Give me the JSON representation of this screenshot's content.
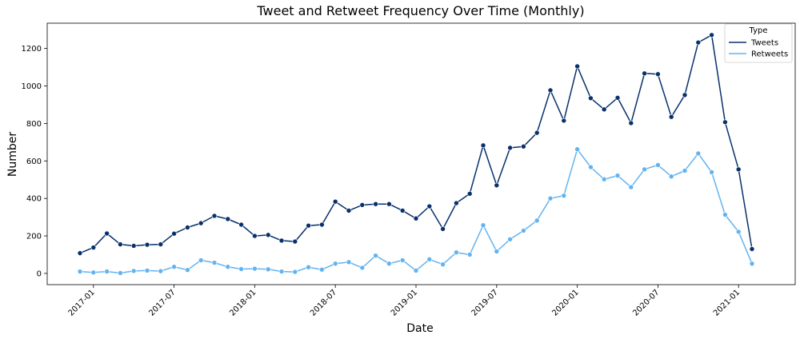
{
  "chart_data": {
    "type": "line",
    "title": "Tweet and Retweet Frequency Over Time (Monthly)",
    "xlabel": "Date",
    "ylabel": "Number",
    "x_start": "2016-12",
    "x_ticks": [
      "2017-01",
      "2017-07",
      "2018-01",
      "2018-07",
      "2019-01",
      "2019-07",
      "2020-01",
      "2020-07",
      "2021-01"
    ],
    "y_ticks": [
      0,
      200,
      400,
      600,
      800,
      1000,
      1200
    ],
    "ylim": [
      -60,
      1335
    ],
    "legend": {
      "title": "Type",
      "placement": "top-right"
    },
    "x": [
      "2016-12",
      "2017-01",
      "2017-02",
      "2017-03",
      "2017-04",
      "2017-05",
      "2017-06",
      "2017-07",
      "2017-08",
      "2017-09",
      "2017-10",
      "2017-11",
      "2017-12",
      "2018-01",
      "2018-02",
      "2018-03",
      "2018-04",
      "2018-05",
      "2018-06",
      "2018-07",
      "2018-08",
      "2018-09",
      "2018-10",
      "2018-11",
      "2018-12",
      "2019-01",
      "2019-02",
      "2019-03",
      "2019-04",
      "2019-05",
      "2019-06",
      "2019-07",
      "2019-08",
      "2019-09",
      "2019-10",
      "2019-11",
      "2019-12",
      "2020-01",
      "2020-02",
      "2020-03",
      "2020-04",
      "2020-05",
      "2020-06",
      "2020-07",
      "2020-08",
      "2020-09",
      "2020-10",
      "2020-11",
      "2020-12",
      "2021-01",
      "2021-02"
    ],
    "series": [
      {
        "name": "Tweets",
        "color": "#08306b",
        "values": [
          108,
          138,
          213,
          155,
          147,
          153,
          155,
          212,
          245,
          268,
          307,
          290,
          260,
          200,
          205,
          175,
          170,
          255,
          260,
          383,
          335,
          365,
          370,
          370,
          335,
          293,
          358,
          237,
          375,
          425,
          683,
          470,
          670,
          677,
          750,
          977,
          815,
          1105,
          935,
          875,
          937,
          802,
          1067,
          1063,
          835,
          952,
          1232,
          1272,
          807,
          555,
          130
        ]
      },
      {
        "name": "Retweets",
        "color": "#63b3f0",
        "values": [
          10,
          5,
          10,
          2,
          13,
          15,
          12,
          35,
          18,
          70,
          57,
          35,
          23,
          25,
          22,
          10,
          8,
          33,
          20,
          52,
          60,
          30,
          95,
          52,
          70,
          15,
          75,
          48,
          112,
          100,
          257,
          117,
          182,
          228,
          282,
          400,
          415,
          662,
          567,
          502,
          522,
          460,
          555,
          578,
          517,
          548,
          640,
          540,
          313,
          222,
          52
        ]
      }
    ]
  }
}
